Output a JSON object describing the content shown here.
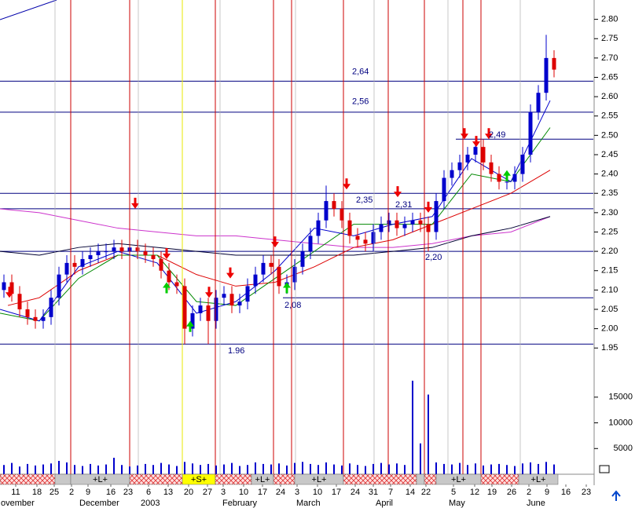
{
  "chart_data": {
    "type": "candlestick",
    "xlim": [
      0,
      151
    ],
    "ylim": [
      1.92,
      2.85
    ],
    "yticks": [
      1.95,
      {
        "value": 2,
        "label": "2.00"
      },
      2.05,
      {
        "value": 2.1,
        "label": "2.10"
      },
      2.15,
      {
        "value": 2.2,
        "label": "2.20"
      },
      2.25,
      {
        "value": 2.3,
        "label": "2.30"
      },
      2.35,
      {
        "value": 2.4,
        "label": "2.40"
      },
      2.45,
      {
        "value": 2.5,
        "label": "2.50"
      },
      2.55,
      {
        "value": 2.6,
        "label": "2.60"
      },
      2.65,
      {
        "value": 2.7,
        "label": "2.70"
      },
      2.75,
      {
        "value": 2.8,
        "label": "2.80"
      }
    ],
    "xticks": [
      {
        "value": 4,
        "label": "11"
      },
      {
        "value": 9.4,
        "label": "18"
      },
      {
        "value": 13.8,
        "label": "25"
      },
      {
        "value": 18.2,
        "label": "2"
      },
      {
        "value": 22.4,
        "label": "9"
      },
      {
        "value": 28.2,
        "label": "16"
      },
      {
        "value": 32.6,
        "label": "23"
      },
      {
        "value": 37.8,
        "label": "6"
      },
      {
        "value": 42.8,
        "label": "13"
      },
      {
        "value": 48,
        "label": "20"
      },
      {
        "value": 52.8,
        "label": "27"
      },
      {
        "value": 56.8,
        "label": "3"
      },
      {
        "value": 62,
        "label": "10"
      },
      {
        "value": 66.8,
        "label": "17"
      },
      {
        "value": 71.4,
        "label": "24"
      },
      {
        "value": 75.6,
        "label": "3"
      },
      {
        "value": 80.8,
        "label": "10"
      },
      {
        "value": 85.6,
        "label": "17"
      },
      {
        "value": 90.4,
        "label": "24"
      },
      {
        "value": 95,
        "label": "31"
      },
      {
        "value": 99.4,
        "label": "7"
      },
      {
        "value": 104.4,
        "label": "14"
      },
      {
        "value": 108.4,
        "label": "22"
      },
      {
        "value": 115.4,
        "label": "5"
      },
      {
        "value": 120.8,
        "label": "12"
      },
      {
        "value": 125.2,
        "label": "19"
      },
      {
        "value": 130.2,
        "label": "26"
      },
      {
        "value": 134.6,
        "label": "2"
      },
      {
        "value": 139.2,
        "label": "9"
      },
      {
        "value": 144,
        "label": "16"
      },
      {
        "value": 149.2,
        "label": "23"
      }
    ],
    "month_labels": [
      {
        "value": 0,
        "label": "ovember"
      },
      {
        "value": 20,
        "label": "December"
      },
      {
        "value": 35.6,
        "label": "2003"
      },
      {
        "value": 56.4,
        "label": "February"
      },
      {
        "value": 75.2,
        "label": "March"
      },
      {
        "value": 95.4,
        "label": "April"
      },
      {
        "value": 114,
        "label": "May"
      },
      {
        "value": 133.8,
        "label": "June"
      }
    ],
    "xgrid": [
      14,
      35.2,
      56,
      75.2,
      95.2,
      114,
      132.4
    ],
    "up_color": "#0000cc",
    "down_color": "#dd0000",
    "x": [
      1,
      3,
      5,
      7,
      9,
      11,
      13,
      15,
      17,
      19,
      21,
      23,
      25,
      27,
      29,
      31,
      33,
      35,
      37,
      39,
      41,
      43,
      45,
      47,
      49,
      51,
      53,
      55,
      57,
      59,
      61,
      63,
      65,
      67,
      69,
      71,
      73,
      75,
      77,
      79,
      81,
      83,
      85,
      87,
      89,
      91,
      93,
      95,
      97,
      99,
      101,
      103,
      105,
      107,
      109,
      111,
      113,
      115,
      117,
      119,
      121,
      123,
      125,
      127,
      129,
      131,
      133,
      135,
      137,
      139,
      141
    ],
    "open": [
      2.1,
      2.12,
      2.09,
      2.05,
      2.03,
      2.02,
      2.03,
      2.08,
      2.14,
      2.17,
      2.16,
      2.18,
      2.19,
      2.2,
      2.2,
      2.21,
      2.2,
      2.21,
      2.2,
      2.19,
      2.18,
      2.15,
      2.12,
      2.11,
      2.0,
      2.04,
      2.06,
      2.02,
      2.08,
      2.09,
      2.06,
      2.07,
      2.11,
      2.14,
      2.17,
      2.16,
      2.11,
      2.12,
      2.16,
      2.2,
      2.24,
      2.28,
      2.33,
      2.31,
      2.28,
      2.24,
      2.23,
      2.22,
      2.25,
      2.27,
      2.28,
      2.26,
      2.27,
      2.28,
      2.27,
      2.25,
      2.33,
      2.39,
      2.41,
      2.43,
      2.45,
      2.47,
      2.43,
      2.4,
      2.38,
      2.38,
      2.4,
      2.45,
      2.56,
      2.61,
      2.7
    ],
    "high": [
      2.14,
      2.14,
      2.11,
      2.07,
      2.05,
      2.05,
      2.1,
      2.16,
      2.19,
      2.19,
      2.2,
      2.21,
      2.22,
      2.22,
      2.23,
      2.23,
      2.23,
      2.23,
      2.22,
      2.21,
      2.2,
      2.17,
      2.14,
      2.13,
      2.06,
      2.08,
      2.08,
      2.1,
      2.11,
      2.11,
      2.09,
      2.13,
      2.16,
      2.19,
      2.19,
      2.18,
      2.14,
      2.18,
      2.22,
      2.26,
      2.3,
      2.37,
      2.35,
      2.33,
      2.3,
      2.26,
      2.25,
      2.27,
      2.29,
      2.3,
      2.3,
      2.29,
      2.3,
      2.3,
      2.29,
      2.35,
      2.41,
      2.43,
      2.45,
      2.47,
      2.49,
      2.49,
      2.45,
      2.42,
      2.4,
      2.42,
      2.47,
      2.58,
      2.63,
      2.76,
      2.72
    ],
    "low": [
      2.08,
      2.07,
      2.03,
      2.01,
      2.0,
      2.0,
      2.01,
      2.06,
      2.12,
      2.14,
      2.14,
      2.16,
      2.17,
      2.18,
      2.18,
      2.18,
      2.18,
      2.18,
      2.17,
      2.16,
      2.13,
      2.1,
      2.09,
      1.96,
      1.98,
      2.02,
      1.96,
      2.0,
      2.06,
      2.04,
      2.04,
      2.05,
      2.09,
      2.12,
      2.14,
      2.09,
      2.09,
      2.1,
      2.14,
      2.18,
      2.22,
      2.26,
      2.29,
      2.26,
      2.22,
      2.21,
      2.2,
      2.2,
      2.23,
      2.25,
      2.24,
      2.24,
      2.25,
      2.25,
      2.2,
      2.23,
      2.31,
      2.37,
      2.39,
      2.41,
      2.43,
      2.41,
      2.38,
      2.36,
      2.36,
      2.36,
      2.38,
      2.43,
      2.54,
      2.59,
      2.65
    ],
    "close": [
      2.12,
      2.09,
      2.05,
      2.03,
      2.02,
      2.03,
      2.08,
      2.14,
      2.17,
      2.16,
      2.18,
      2.19,
      2.2,
      2.2,
      2.21,
      2.2,
      2.21,
      2.2,
      2.19,
      2.18,
      2.15,
      2.12,
      2.11,
      2.0,
      2.04,
      2.06,
      2.02,
      2.08,
      2.09,
      2.06,
      2.07,
      2.11,
      2.14,
      2.17,
      2.16,
      2.11,
      2.12,
      2.16,
      2.2,
      2.24,
      2.28,
      2.33,
      2.31,
      2.28,
      2.24,
      2.23,
      2.22,
      2.25,
      2.27,
      2.28,
      2.26,
      2.27,
      2.28,
      2.27,
      2.25,
      2.33,
      2.39,
      2.41,
      2.43,
      2.45,
      2.47,
      2.43,
      2.4,
      2.38,
      2.38,
      2.4,
      2.45,
      2.56,
      2.61,
      2.7,
      2.67
    ],
    "moving_averages": [
      {
        "color": "#cc33cc",
        "x": [
          0,
          10,
          20,
          30,
          40,
          50,
          60,
          70,
          80,
          90,
          100,
          110,
          120,
          130,
          140
        ],
        "values": [
          2.31,
          2.3,
          2.28,
          2.26,
          2.25,
          2.24,
          2.24,
          2.23,
          2.22,
          2.21,
          2.21,
          2.22,
          2.24,
          2.25,
          2.29
        ]
      },
      {
        "color": "#000033",
        "x": [
          0,
          10,
          20,
          30,
          40,
          50,
          60,
          70,
          80,
          90,
          100,
          110,
          120,
          130,
          140
        ],
        "values": [
          2.2,
          2.19,
          2.21,
          2.22,
          2.21,
          2.2,
          2.19,
          2.19,
          2.19,
          2.19,
          2.2,
          2.21,
          2.24,
          2.26,
          2.29
        ]
      },
      {
        "color": "#dd0000",
        "x": [
          2,
          10,
          20,
          30,
          40,
          50,
          60,
          70,
          80,
          90,
          100,
          110,
          120,
          130,
          140
        ],
        "values": [
          2.06,
          2.08,
          2.15,
          2.19,
          2.19,
          2.14,
          2.11,
          2.12,
          2.16,
          2.21,
          2.23,
          2.27,
          2.31,
          2.35,
          2.41
        ]
      },
      {
        "color": "#008800",
        "x": [
          0,
          10,
          20,
          30,
          40,
          50,
          60,
          70,
          80,
          90,
          100,
          110,
          120,
          130,
          140
        ],
        "values": [
          2.04,
          2.02,
          2.13,
          2.19,
          2.19,
          2.07,
          2.06,
          2.13,
          2.2,
          2.27,
          2.27,
          2.27,
          2.4,
          2.38,
          2.52
        ]
      },
      {
        "color": "#0000cc",
        "x": [
          0,
          10,
          20,
          30,
          40,
          50,
          60,
          70,
          80,
          90,
          100,
          110,
          120,
          130,
          140
        ],
        "values": [
          2.05,
          2.02,
          2.16,
          2.2,
          2.17,
          2.04,
          2.07,
          2.15,
          2.26,
          2.24,
          2.27,
          2.29,
          2.44,
          2.38,
          2.59
        ]
      }
    ],
    "levels": {
      "values": [
        2.64,
        2.56,
        2.49,
        2.35,
        2.31,
        2.2,
        2.08,
        1.96
      ],
      "value_labels": [
        "2,64",
        "2,56",
        "2,49",
        "2,35",
        "2,31",
        "2,20",
        "2,08",
        "1.96"
      ],
      "from_x": [
        0,
        0,
        116,
        0,
        0,
        0,
        72,
        0
      ],
      "color": "#000080"
    },
    "event_lines": {
      "x": [
        18,
        33,
        54.8,
        69.6,
        74.2,
        87.4,
        98.8,
        108,
        117.8,
        122.4
      ],
      "color": "#cc0000"
    },
    "highlight_line": {
      "x": 46.4,
      "color": "#e8e800"
    },
    "sell_signals": {
      "x": [
        2.4,
        34.4,
        42.4,
        53.2,
        58.6,
        70,
        88.2,
        101.2,
        109,
        118.2,
        121.2,
        124.4
      ],
      "values": [
        2.08,
        2.31,
        2.18,
        2.08,
        2.13,
        2.21,
        2.36,
        2.34,
        2.3,
        2.49,
        2.47,
        2.49
      ],
      "color": "#ee0000"
    },
    "buy_signals": {
      "x": [
        42.4,
        48.4,
        73,
        129
      ],
      "values": [
        2.12,
        2.02,
        2.12,
        2.41
      ],
      "color": "#00cc00"
    },
    "volume": {
      "ylim": [
        0,
        22000
      ],
      "yticks": [
        5000,
        10000,
        15000
      ],
      "color": "#0000cc",
      "values": [
        1800,
        2200,
        1500,
        2000,
        1700,
        1900,
        2100,
        2600,
        2300,
        1800,
        1600,
        2000,
        1700,
        1900,
        3200,
        1800,
        1500,
        1700,
        2000,
        1800,
        2200,
        1900,
        1600,
        2400,
        2100,
        1800,
        2000,
        1700,
        1900,
        2200,
        1600,
        1800,
        2300,
        2000,
        1900,
        2100,
        1700,
        2200,
        2400,
        2000,
        1800,
        2300,
        1900,
        1700,
        2100,
        1800,
        1600,
        2000,
        2200,
        1900,
        2100,
        1800,
        18200,
        6000,
        15500,
        2300,
        2000,
        1900,
        2200,
        1800,
        2100,
        1700,
        1900,
        2000,
        1800,
        1600,
        2100,
        2300,
        2000,
        2400,
        1900
      ]
    },
    "signal_bar": [
      {
        "x0": 0,
        "x1": 14,
        "state": "hatch"
      },
      {
        "x0": 14,
        "x1": 18,
        "state": "gray"
      },
      {
        "x0": 18,
        "x1": 33,
        "state": "gray",
        "label": "+L+"
      },
      {
        "x0": 33,
        "x1": 46.4,
        "state": "hatch"
      },
      {
        "x0": 46.4,
        "x1": 54.8,
        "state": "yellow",
        "label": "+S+"
      },
      {
        "x0": 54.8,
        "x1": 64,
        "state": "hatch"
      },
      {
        "x0": 64,
        "x1": 69.6,
        "state": "gray",
        "label": "+L+"
      },
      {
        "x0": 69.6,
        "x1": 75,
        "state": "hatch"
      },
      {
        "x0": 75,
        "x1": 87.4,
        "state": "gray",
        "label": "+L+"
      },
      {
        "x0": 87.4,
        "x1": 106,
        "state": "hatch"
      },
      {
        "x0": 106,
        "x1": 108,
        "state": "gray"
      },
      {
        "x0": 108,
        "x1": 111,
        "state": "hatch"
      },
      {
        "x0": 111,
        "x1": 122.4,
        "state": "gray",
        "label": "+L+"
      },
      {
        "x0": 122.4,
        "x1": 132,
        "state": "hatch"
      },
      {
        "x0": 132,
        "x1": 142,
        "state": "gray",
        "label": "+L+"
      }
    ]
  }
}
